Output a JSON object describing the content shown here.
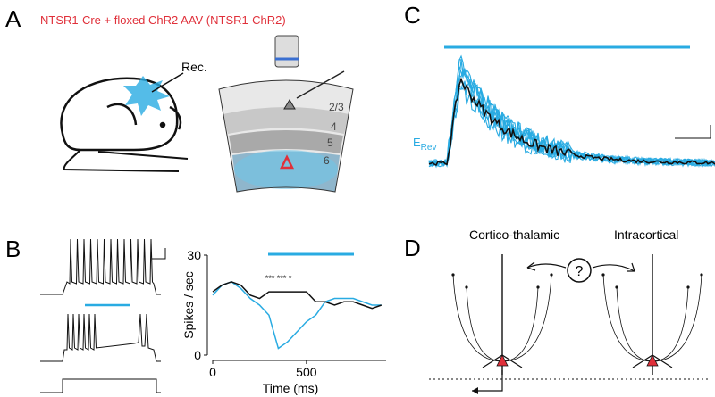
{
  "panel_a": {
    "label": "A",
    "caption": "NTSR1-Cre + floxed ChR2 AAV (NTSR1-ChR2)",
    "rec": "Rec.",
    "layers": [
      "2/3",
      "4",
      "5",
      "6"
    ]
  },
  "panel_b": {
    "label": "B",
    "chart_data": {
      "type": "line",
      "ylabel": "Spikes / sec",
      "xlabel": "Time (ms)",
      "annotation": "*** *** *",
      "x": [
        0,
        50,
        100,
        150,
        200,
        250,
        300,
        350,
        400,
        450,
        500,
        550,
        600,
        650,
        700,
        750,
        800,
        850,
        900
      ],
      "series": [
        {
          "color": "#111111",
          "values": [
            19,
            21,
            22,
            21,
            18,
            17,
            19,
            19,
            19,
            19,
            19,
            16,
            16,
            15,
            16,
            16,
            15,
            14,
            15
          ]
        },
        {
          "color": "#29abe2",
          "values": [
            18,
            21,
            22,
            20,
            17,
            15,
            12,
            2,
            4,
            7,
            10,
            12,
            16,
            17,
            17,
            17,
            16,
            15,
            15
          ]
        }
      ],
      "xlim": [
        0,
        925
      ],
      "ylim": [
        0,
        30
      ],
      "xticks": [
        0,
        500
      ],
      "yticks": [
        0,
        30
      ]
    }
  },
  "panel_c": {
    "label": "C",
    "erev": "E",
    "erev_sub": "Rev"
  },
  "panel_d": {
    "label": "D",
    "left_title": "Cortico-thalamic",
    "right_title": "Intracortical",
    "question": "?"
  }
}
